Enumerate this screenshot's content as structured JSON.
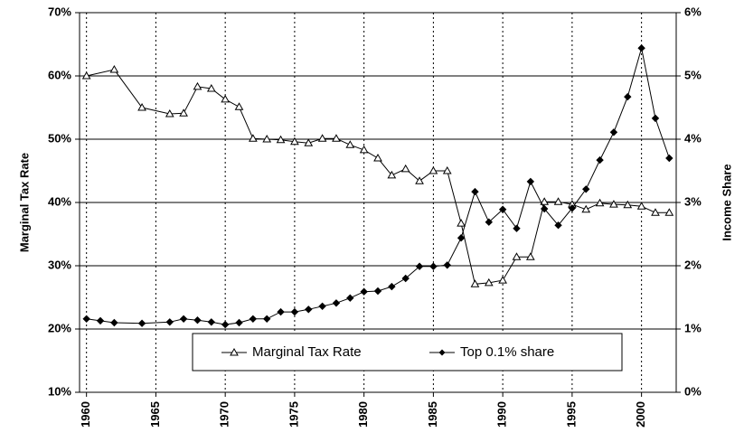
{
  "chart_data": {
    "type": "line",
    "y_label": "Marginal Tax Rate",
    "y2_label": "Income Share",
    "xlim": [
      1959.5,
      2002.5
    ],
    "xticks": [
      1960,
      1965,
      1970,
      1975,
      1980,
      1985,
      1990,
      1995,
      2000
    ],
    "ylim": [
      10,
      70
    ],
    "yticks": [
      {
        "value": 10,
        "label": "10%"
      },
      {
        "value": 20,
        "label": "20%"
      },
      {
        "value": 30,
        "label": "30%"
      },
      {
        "value": 40,
        "label": "40%"
      },
      {
        "value": 50,
        "label": "50%"
      },
      {
        "value": 60,
        "label": "60%"
      },
      {
        "value": 70,
        "label": "70%"
      }
    ],
    "y2lim": [
      0,
      6
    ],
    "y2ticks": [
      {
        "value": 0,
        "label": "0%"
      },
      {
        "value": 1,
        "label": "1%"
      },
      {
        "value": 2,
        "label": "2%"
      },
      {
        "value": 3,
        "label": "3%"
      },
      {
        "value": 4,
        "label": "4%"
      },
      {
        "value": 5,
        "label": "5%"
      },
      {
        "value": 6,
        "label": "6%"
      }
    ],
    "grid": true,
    "legend": "bottom",
    "series": [
      {
        "name": "Marginal Tax Rate",
        "color": "#000000",
        "marker": "triangle-open",
        "x": [
          1960,
          1962,
          1964,
          1966,
          1967,
          1968,
          1969,
          1970,
          1971,
          1972,
          1973,
          1974,
          1975,
          1976,
          1977,
          1978,
          1979,
          1980,
          1981,
          1982,
          1983,
          1984,
          1985,
          1986,
          1987,
          1988,
          1989,
          1990,
          1991,
          1992,
          1993,
          1994,
          1995,
          1996,
          1997,
          1998,
          1999,
          2000,
          2001,
          2002
        ],
        "values": [
          60,
          61,
          55,
          54,
          54.1,
          58.3,
          58,
          56.3,
          55.1,
          50.1,
          50,
          49.9,
          49.6,
          49.4,
          50.1,
          50.1,
          49.1,
          48.3,
          47,
          44.3,
          45.3,
          43.4,
          45,
          45,
          36.7,
          27.1,
          27.3,
          27.7,
          31.4,
          31.4,
          40.1,
          40.1,
          39.7,
          38.9,
          39.9,
          39.7,
          39.6,
          39.4,
          38.4,
          38.4
        ]
      },
      {
        "name": "Top 0.1% share",
        "color": "#000000",
        "marker": "diamond",
        "axis": "y2",
        "x": [
          1960,
          1961,
          1962,
          1964,
          1966,
          1967,
          1968,
          1969,
          1970,
          1971,
          1972,
          1973,
          1974,
          1975,
          1976,
          1977,
          1978,
          1979,
          1980,
          1981,
          1982,
          1983,
          1984,
          1985,
          1986,
          1987,
          1988,
          1989,
          1990,
          1991,
          1992,
          1993,
          1994,
          1995,
          1996,
          1997,
          1998,
          1999,
          2000,
          2001,
          2002
        ],
        "values": [
          1.16,
          1.13,
          1.1,
          1.09,
          1.11,
          1.16,
          1.14,
          1.11,
          1.07,
          1.1,
          1.16,
          1.16,
          1.27,
          1.27,
          1.31,
          1.36,
          1.41,
          1.49,
          1.59,
          1.6,
          1.67,
          1.8,
          1.99,
          1.99,
          2.01,
          2.44,
          3.17,
          2.69,
          2.89,
          2.59,
          3.33,
          2.9,
          2.64,
          2.91,
          3.21,
          3.67,
          4.11,
          4.67,
          5.44,
          4.33,
          3.7
        ]
      }
    ]
  }
}
